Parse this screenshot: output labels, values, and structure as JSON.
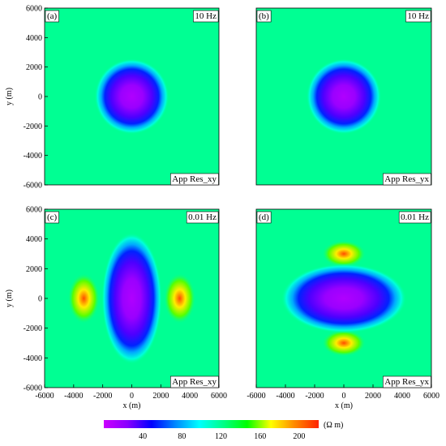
{
  "chart_data": [
    {
      "type": "heatmap",
      "panel": "(a)",
      "frequency": "10 Hz",
      "component": "App Res_xy",
      "xlim": [
        -6000,
        6000
      ],
      "ylim": [
        -6000,
        6000
      ],
      "ylabel": "y (m)",
      "xlabel": "",
      "anomaly": {
        "shape": "circle",
        "center": [
          0,
          0
        ],
        "radius": 1900,
        "value_center": 10,
        "background": 120
      },
      "yticks": [
        -6000,
        -4000,
        -2000,
        0,
        2000,
        4000,
        6000
      ],
      "xticks": []
    },
    {
      "type": "heatmap",
      "panel": "(b)",
      "frequency": "10 Hz",
      "component": "App Res_yx",
      "xlim": [
        -6000,
        6000
      ],
      "ylim": [
        -6000,
        6000
      ],
      "ylabel": "",
      "xlabel": "",
      "anomaly": {
        "shape": "circle",
        "center": [
          0,
          0
        ],
        "radius": 1900,
        "value_center": 10,
        "background": 120
      },
      "yticks": [],
      "xticks": []
    },
    {
      "type": "heatmap",
      "panel": "(c)",
      "frequency": "0.01 Hz",
      "component": "App Res_xy",
      "xlim": [
        -6000,
        6000
      ],
      "ylim": [
        -6000,
        6000
      ],
      "ylabel": "y (m)",
      "xlabel": "x (m)",
      "anomaly": {
        "shape": "ellipse-vertical",
        "center": [
          0,
          0
        ],
        "radius_x": 1600,
        "radius_y": 3400,
        "value_center": 10,
        "background": 120,
        "side_highs": [
          {
            "x": -3300,
            "y": 0,
            "value": 210
          },
          {
            "x": 3300,
            "y": 0,
            "value": 210
          }
        ]
      },
      "yticks": [
        -6000,
        -4000,
        -2000,
        0,
        2000,
        4000,
        6000
      ],
      "xticks": [
        -6000,
        -4000,
        -2000,
        0,
        2000,
        4000,
        6000
      ]
    },
    {
      "type": "heatmap",
      "panel": "(d)",
      "frequency": "0.01 Hz",
      "component": "App Res_yx",
      "xlim": [
        -6000,
        6000
      ],
      "ylim": [
        -6000,
        6000
      ],
      "ylabel": "",
      "xlabel": "x (m)",
      "anomaly": {
        "shape": "ellipse-horizontal",
        "center": [
          0,
          0
        ],
        "radius_x": 3300,
        "radius_y": 1800,
        "value_center": 10,
        "background": 120,
        "side_highs": [
          {
            "x": 0,
            "y": 3000,
            "value": 210
          },
          {
            "x": 0,
            "y": -3000,
            "value": 210
          }
        ]
      },
      "yticks": [],
      "xticks": [
        -6000,
        -4000,
        -2000,
        0,
        2000,
        4000,
        6000
      ]
    }
  ],
  "colorbar": {
    "unit": "(Ω m)",
    "range": [
      0,
      220
    ],
    "ticks": [
      40,
      80,
      120,
      160,
      200
    ],
    "stops": [
      "#cc00ff",
      "#8800ff",
      "#0000ff",
      "#0088ff",
      "#00ffff",
      "#00ff88",
      "#00ff00",
      "#ffff00",
      "#ff8800",
      "#ff2200"
    ]
  }
}
